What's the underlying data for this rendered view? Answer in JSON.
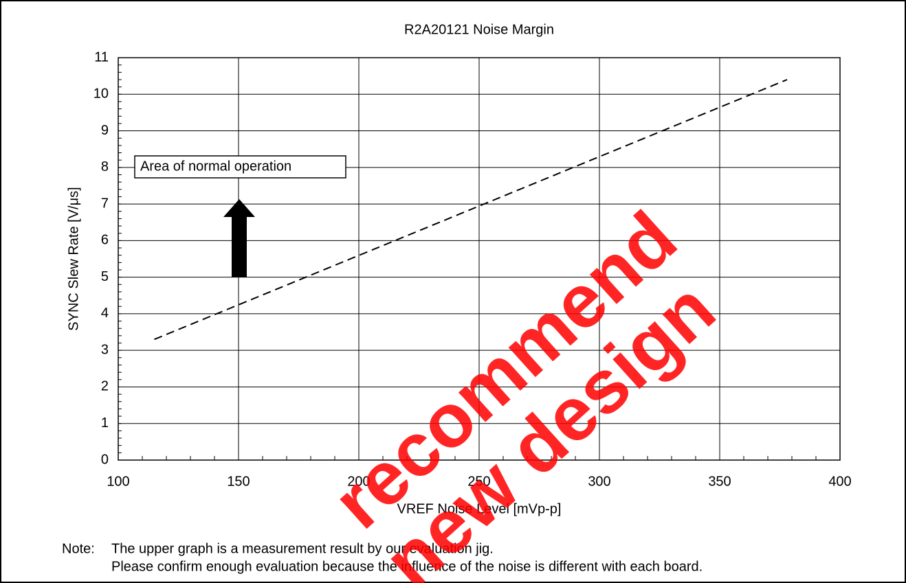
{
  "chart_data": {
    "type": "line",
    "title": "R2A20121 Noise Margin",
    "xlabel": "VREF Noise Level   [mVp-p]",
    "ylabel": "SYNC Slew Rate   [V/μs]",
    "x": [
      115,
      378
    ],
    "series": [
      {
        "color": "#000000",
        "line_style": "dashed",
        "values": [
          3.3,
          10.4
        ]
      }
    ],
    "xlim": [
      100,
      400
    ],
    "xticks": [
      100,
      150,
      200,
      250,
      300,
      350,
      400
    ],
    "ylim": [
      0,
      11
    ],
    "yticks": [
      0,
      1,
      2,
      3,
      4,
      5,
      6,
      7,
      8,
      9,
      10,
      11
    ],
    "grid": true,
    "annotation": "Area of normal operation",
    "note_label": "Note:",
    "notes": [
      "The upper graph is a measurement result by our evaluation jig.",
      "Please confirm enough evaluation because the influence of the noise is different with each board."
    ],
    "watermark": [
      "recommend",
      "new design"
    ],
    "watermark_color": "#ff0000"
  }
}
